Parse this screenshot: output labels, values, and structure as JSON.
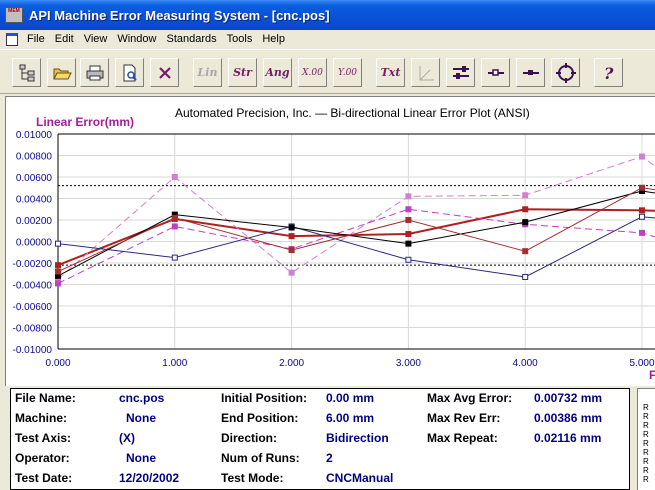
{
  "window": {
    "title": "API Machine Error Measuring System - [cnc.pos]",
    "icon_text": "MEM"
  },
  "menu": [
    "File",
    "Edit",
    "View",
    "Window",
    "Standards",
    "Tools",
    "Help"
  ],
  "toolbar": {
    "buttons": [
      {
        "name": "tree-view-button",
        "icon": "tree-icon"
      },
      {
        "name": "open-button",
        "icon": "folder-open-icon"
      },
      {
        "name": "print-button",
        "icon": "printer-icon"
      },
      {
        "name": "print-preview-button",
        "icon": "print-preview-icon"
      },
      {
        "name": "close-button",
        "icon": "x-icon"
      },
      {
        "name": "lin-button",
        "label": "Lin",
        "enabled": false
      },
      {
        "name": "str-button",
        "label": "Str",
        "enabled": true
      },
      {
        "name": "ang-button",
        "label": "Ang",
        "enabled": true
      },
      {
        "name": "x00-button",
        "label": "X.00",
        "enabled": true
      },
      {
        "name": "y00-button",
        "label": "Y.00",
        "enabled": true
      },
      {
        "name": "txt-button",
        "label": "Txt",
        "enabled": true
      },
      {
        "name": "axes-button",
        "icon": "axes-icon"
      },
      {
        "name": "sliders-button",
        "icon": "sliders-icon"
      },
      {
        "name": "line-marker-button",
        "icon": "line-marker-icon"
      },
      {
        "name": "line-marker-2-button",
        "icon": "line-marker-icon"
      },
      {
        "name": "target-button",
        "icon": "crosshair-icon"
      },
      {
        "name": "help-button",
        "icon": "question-icon"
      }
    ]
  },
  "chart_data": {
    "type": "line",
    "title": "Automated Precision, Inc. — Bi-directional Linear Error Plot   (ANSI)",
    "ylabel": "Linear Error(mm)",
    "xlim": [
      0,
      5.25
    ],
    "ylim": [
      -0.01,
      0.01
    ],
    "x_ticks": [
      "0.000",
      "1.000",
      "2.000",
      "3.000",
      "4.000",
      "5.000"
    ],
    "y_ticks": [
      "0.01000",
      "0.00800",
      "0.00600",
      "0.00400",
      "0.00200",
      "0.00000",
      "-0.00200",
      "-0.00400",
      "-0.00600",
      "-0.00800",
      "-0.01000"
    ],
    "reference_lines": [
      0.0052,
      -0.0022
    ],
    "x": [
      0,
      1,
      2,
      3,
      4,
      5,
      5.3
    ],
    "series": [
      {
        "color": "#b02020",
        "style": "solid",
        "width": 2,
        "values": [
          -0.0022,
          0.0021,
          0.0005,
          0.0007,
          0.003,
          0.0029,
          0.0028
        ]
      },
      {
        "color": "#d080d0",
        "style": "dash",
        "width": 1,
        "values": [
          -0.0035,
          0.006,
          -0.0029,
          0.0042,
          0.0043,
          0.0079,
          0.0055
        ]
      },
      {
        "color": "#c040c0",
        "style": "dash",
        "width": 1,
        "values": [
          -0.0039,
          0.0014,
          -0.0007,
          0.003,
          0.0016,
          0.0008,
          -0.0002
        ]
      },
      {
        "color": "#2a2a80",
        "style": "solid",
        "width": 1,
        "values": [
          -0.0002,
          -0.0015,
          0.0014,
          -0.0017,
          -0.0033,
          0.0023,
          0.002
        ]
      },
      {
        "color": "#000000",
        "style": "solid",
        "width": 1,
        "values": [
          -0.0032,
          0.0025,
          0.0013,
          -0.0002,
          0.0018,
          0.0047,
          0.0042
        ]
      },
      {
        "color": "#a03030",
        "style": "solid",
        "width": 1,
        "values": [
          -0.0028,
          0.0022,
          -0.0008,
          0.002,
          -0.0009,
          0.005,
          0.0045
        ]
      }
    ],
    "grid": true
  },
  "right_mark": "F",
  "info": {
    "file_name_label": "File Name:",
    "file_name": "cnc.pos",
    "machine_label": "Machine:",
    "machine": "None",
    "test_axis_label": "Test Axis:",
    "test_axis": "(X)",
    "operator_label": "Operator:",
    "operator": "None",
    "test_date_label": "Test Date:",
    "test_date": "12/20/2002",
    "initial_position_label": "Initial Position:",
    "initial_position": "0.00 mm",
    "end_position_label": "End Position:",
    "end_position": "6.00 mm",
    "direction_label": "Direction:",
    "direction": "Bidirection",
    "num_runs_label": "Num of Runs:",
    "num_runs": "2",
    "test_mode_label": "Test Mode:",
    "test_mode": "CNCManual",
    "max_avg_error_label": "Max Avg Error:",
    "max_avg_error": "0.00732 mm",
    "max_rev_err_label": "Max Rev Err:",
    "max_rev_err": "0.00386 mm",
    "max_repeat_label": "Max Repeat:",
    "max_repeat": "0.02116 mm"
  },
  "side_letters": [
    "R",
    "R",
    "R",
    "R",
    "R",
    "R",
    "R",
    "R",
    "R"
  ]
}
